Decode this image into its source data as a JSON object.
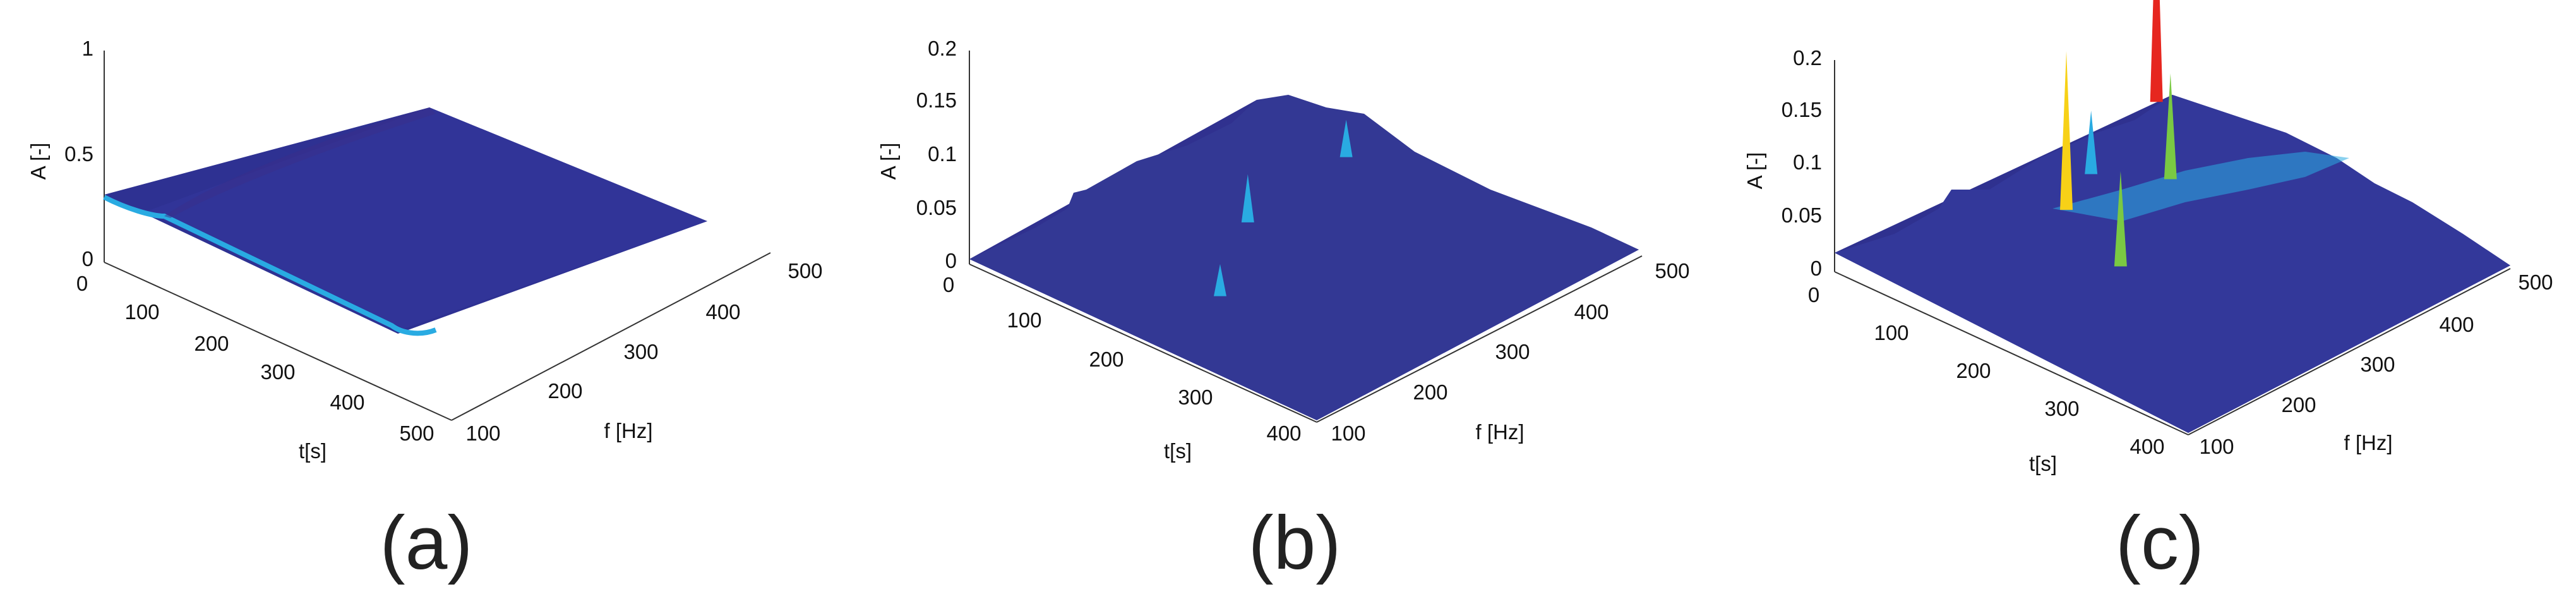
{
  "chart_data": [
    {
      "type": "surface",
      "panel_label": "(a)",
      "xlabel": "t[s]",
      "ylabel": "f [Hz]",
      "zlabel": "A [-]",
      "x_ticks": [
        "0",
        "100",
        "200",
        "300",
        "400",
        "500"
      ],
      "y_ticks": [
        "100",
        "200",
        "300",
        "400",
        "500"
      ],
      "z_ticks": [
        "0",
        "0.5",
        "1"
      ],
      "xlim": [
        0,
        500
      ],
      "ylim": [
        100,
        500
      ],
      "zlim": [
        0,
        1
      ],
      "colormap": "jet",
      "peaks": []
    },
    {
      "type": "surface",
      "panel_label": "(b)",
      "xlabel": "t[s]",
      "ylabel": "f [Hz]",
      "zlabel": "A [-]",
      "x_ticks": [
        "0",
        "100",
        "200",
        "300",
        "400"
      ],
      "y_ticks": [
        "100",
        "200",
        "300",
        "400",
        "500"
      ],
      "z_ticks": [
        "0",
        "0.05",
        "0.1",
        "0.15",
        "0.2"
      ],
      "xlim": [
        0,
        450
      ],
      "ylim": [
        100,
        500
      ],
      "zlim": [
        0,
        0.2
      ],
      "colormap": "jet",
      "peaks": [
        {
          "t": 150,
          "f": 300,
          "a": 0.045
        },
        {
          "t": 230,
          "f": 190,
          "a": 0.03
        },
        {
          "t": 130,
          "f": 440,
          "a": 0.035
        }
      ]
    },
    {
      "type": "surface",
      "panel_label": "(c)",
      "xlabel": "t[s]",
      "ylabel": "f [Hz]",
      "zlabel": "A [-]",
      "x_ticks": [
        "0",
        "100",
        "200",
        "300",
        "400"
      ],
      "y_ticks": [
        "100",
        "200",
        "300",
        "400",
        "500"
      ],
      "z_ticks": [
        "0",
        "0.05",
        "0.1",
        "0.15",
        "0.2"
      ],
      "xlim": [
        0,
        450
      ],
      "ylim": [
        100,
        500
      ],
      "zlim": [
        0,
        0.2
      ],
      "colormap": "jet",
      "peaks": [
        {
          "t": 90,
          "f": 300,
          "a": 0.15
        },
        {
          "t": 10,
          "f": 490,
          "a": 0.2
        },
        {
          "t": 200,
          "f": 260,
          "a": 0.09
        },
        {
          "t": 120,
          "f": 400,
          "a": 0.1
        },
        {
          "t": 60,
          "f": 360,
          "a": 0.06
        }
      ]
    }
  ]
}
